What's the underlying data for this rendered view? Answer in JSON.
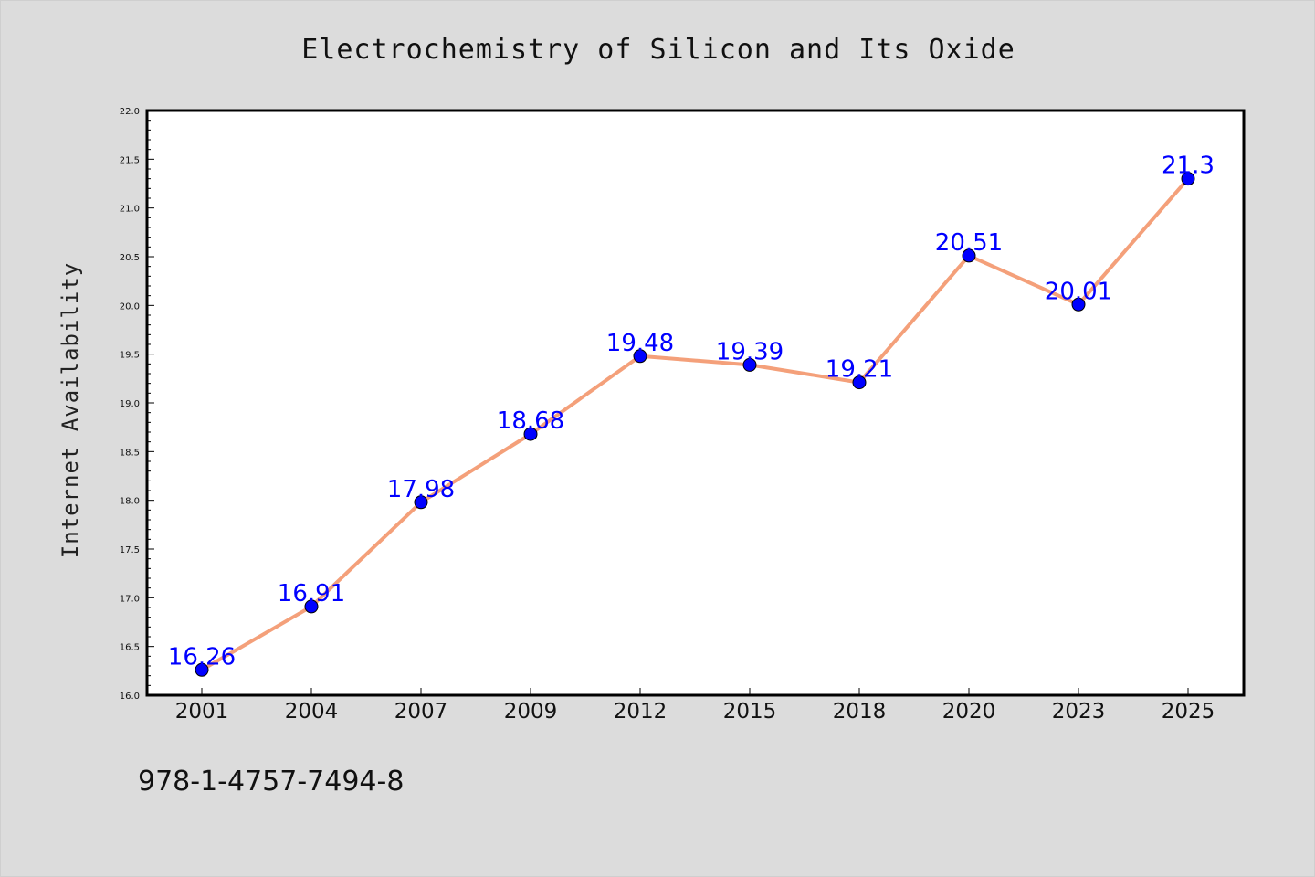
{
  "chart_data": {
    "type": "line",
    "title": "Electrochemistry of Silicon and Its Oxide",
    "xlabel": "",
    "ylabel": "Internet Availability",
    "categories": [
      "2001",
      "2004",
      "2007",
      "2009",
      "2012",
      "2015",
      "2018",
      "2020",
      "2023",
      "2025"
    ],
    "series": [
      {
        "values": [
          16.26,
          16.91,
          17.98,
          18.68,
          19.48,
          19.39,
          19.21,
          20.51,
          20.01,
          21.3
        ],
        "labels": [
          "16.26",
          "16.91",
          "17.98",
          "18.68",
          "19.48",
          "19.39",
          "19.21",
          "20.51",
          "20.01",
          "21.3"
        ],
        "line_color": "#f4a07a",
        "marker_color": "#0000ff"
      }
    ],
    "ylim": [
      16.0,
      22.0
    ],
    "yticks": [
      "16.0",
      "16.5",
      "17.0",
      "17.5",
      "18.0",
      "18.5",
      "19.0",
      "19.5",
      "20.0",
      "20.5",
      "21.0",
      "21.5",
      "22.0"
    ],
    "grid": false,
    "legend": "none",
    "background": "#dcdcdc",
    "plot_background": "#ffffff"
  },
  "footer": {
    "isbn": "978-1-4757-7494-8"
  }
}
